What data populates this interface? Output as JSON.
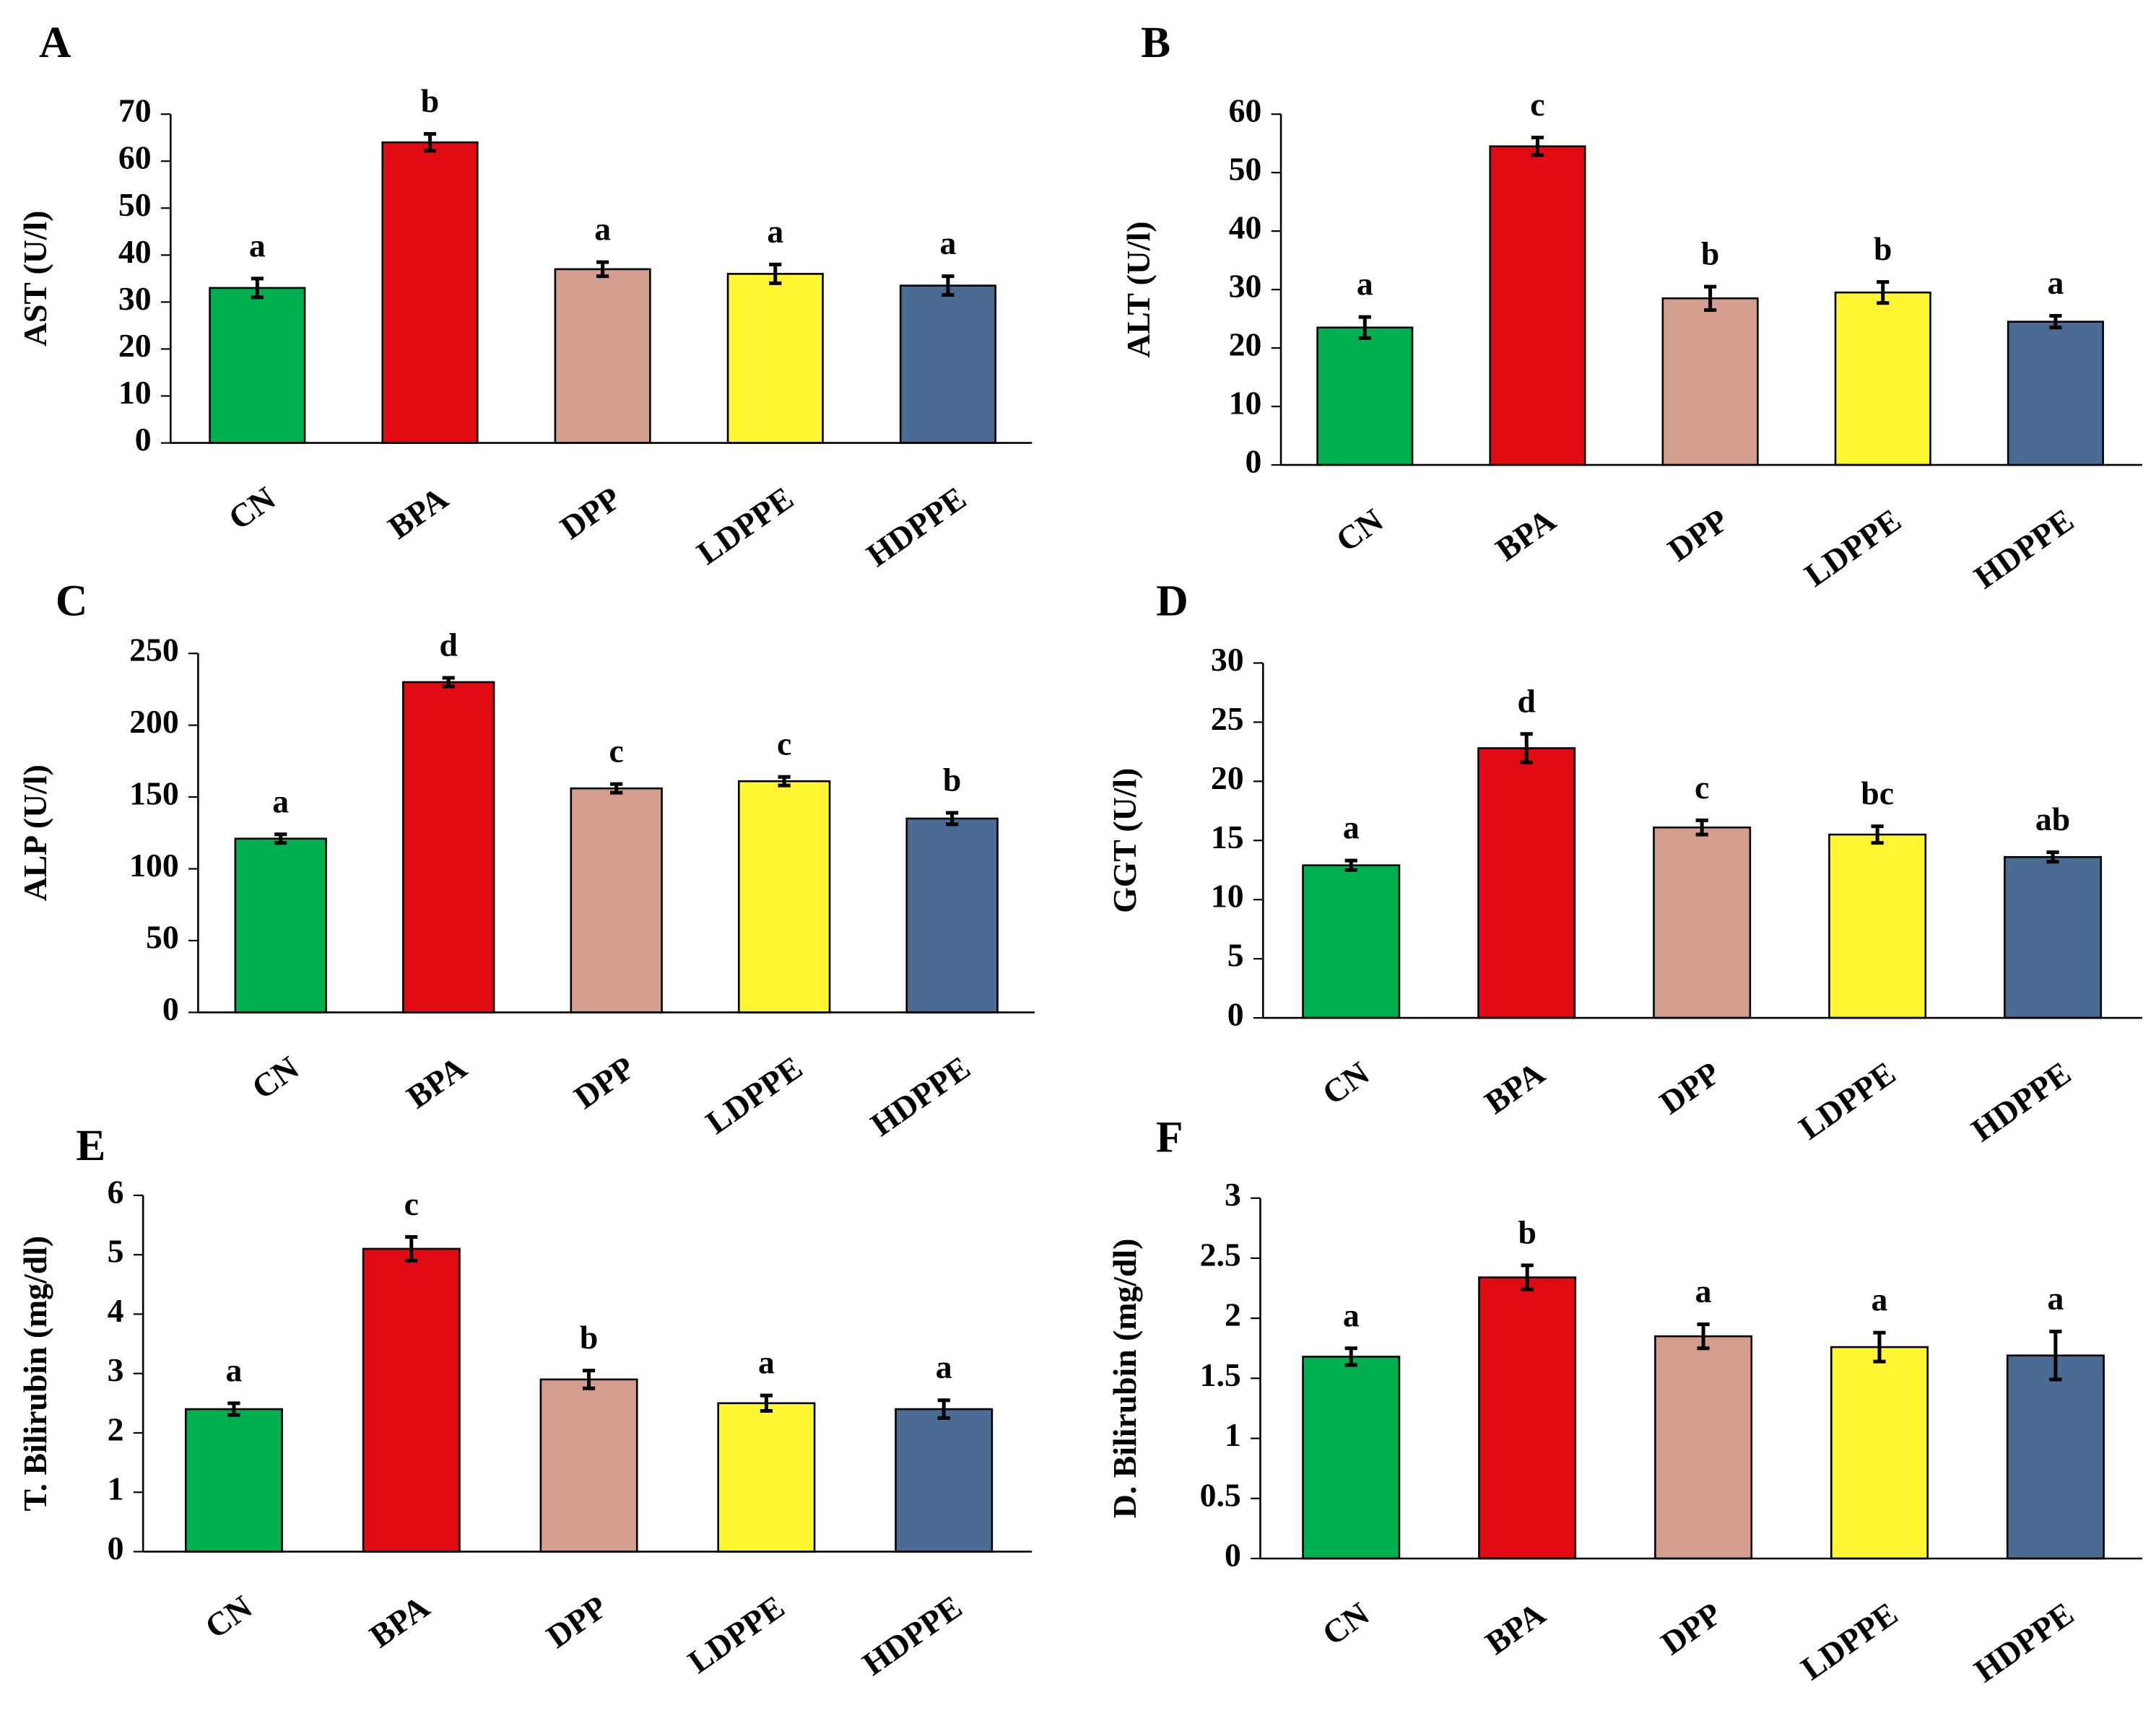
{
  "categories": [
    "CN",
    "BPA",
    "DPP",
    "LDPPE",
    "HDPPE"
  ],
  "colors": {
    "CN": "#00b050",
    "BPA": "#e00b13",
    "DPP": "#d49e8e",
    "LDPPE": "#fff532",
    "HDPPE": "#4a6b94",
    "axis": "#000000"
  },
  "chart_data": [
    {
      "panel": "A",
      "type": "bar",
      "ylabel": "AST (U/l)",
      "ylim": [
        0,
        70
      ],
      "yticks": [
        "0",
        "10",
        "20",
        "30",
        "40",
        "50",
        "60",
        "70"
      ],
      "categories": [
        "CN",
        "BPA",
        "DPP",
        "LDPPE",
        "HDPPE"
      ],
      "values": [
        33,
        64,
        37,
        36,
        33.5
      ],
      "errors": [
        2,
        1.8,
        1.5,
        2,
        2
      ],
      "significance": [
        "a",
        "b",
        "a",
        "a",
        "a"
      ]
    },
    {
      "panel": "B",
      "type": "bar",
      "ylabel": "ALT (U/l)",
      "ylim": [
        0,
        60
      ],
      "yticks": [
        "0",
        "10",
        "20",
        "30",
        "40",
        "50",
        "60"
      ],
      "categories": [
        "CN",
        "BPA",
        "DPP",
        "LDPPE",
        "HDPPE"
      ],
      "values": [
        23.5,
        54.5,
        28.5,
        29.5,
        24.5
      ],
      "errors": [
        1.8,
        1.5,
        2,
        1.8,
        1
      ],
      "significance": [
        "a",
        "c",
        "b",
        "b",
        "a"
      ]
    },
    {
      "panel": "C",
      "type": "bar",
      "ylabel": "ALP (U/l)",
      "ylim": [
        0,
        250
      ],
      "yticks": [
        "0",
        "50",
        "100",
        "150",
        "200",
        "250"
      ],
      "categories": [
        "CN",
        "BPA",
        "DPP",
        "LDPPE",
        "HDPPE"
      ],
      "values": [
        121,
        230,
        156,
        161,
        135
      ],
      "errors": [
        3,
        3,
        3,
        3,
        4
      ],
      "significance": [
        "a",
        "d",
        "c",
        "c",
        "b"
      ]
    },
    {
      "panel": "D",
      "type": "bar",
      "ylabel": "GGT (U/l)",
      "ylim": [
        0,
        30
      ],
      "yticks": [
        "0",
        "5",
        "10",
        "15",
        "20",
        "25",
        "30"
      ],
      "categories": [
        "CN",
        "BPA",
        "DPP",
        "LDPPE",
        "HDPPE"
      ],
      "values": [
        12.9,
        22.8,
        16.1,
        15.5,
        13.6
      ],
      "errors": [
        0.4,
        1.2,
        0.6,
        0.7,
        0.4
      ],
      "significance": [
        "a",
        "d",
        "c",
        "bc",
        "ab"
      ]
    },
    {
      "panel": "E",
      "type": "bar",
      "ylabel": "T. Bilirubin (mg/dl)",
      "ylim": [
        0,
        6
      ],
      "yticks": [
        "0",
        "1",
        "2",
        "3",
        "4",
        "5",
        "6"
      ],
      "categories": [
        "CN",
        "BPA",
        "DPP",
        "LDPPE",
        "HDPPE"
      ],
      "values": [
        2.4,
        5.1,
        2.9,
        2.5,
        2.4
      ],
      "errors": [
        0.1,
        0.2,
        0.15,
        0.13,
        0.15
      ],
      "significance": [
        "a",
        "c",
        "b",
        "a",
        "a"
      ]
    },
    {
      "panel": "F",
      "type": "bar",
      "ylabel": "D. Bilirubin (mg/dl)",
      "ylim": [
        0,
        3
      ],
      "yticks": [
        "0",
        "0.5",
        "1",
        "1.5",
        "2",
        "2.5",
        "3"
      ],
      "categories": [
        "CN",
        "BPA",
        "DPP",
        "LDPPE",
        "HDPPE"
      ],
      "values": [
        1.68,
        2.34,
        1.85,
        1.76,
        1.69
      ],
      "errors": [
        0.07,
        0.1,
        0.1,
        0.12,
        0.2
      ],
      "significance": [
        "a",
        "b",
        "a",
        "a",
        "a"
      ]
    }
  ]
}
